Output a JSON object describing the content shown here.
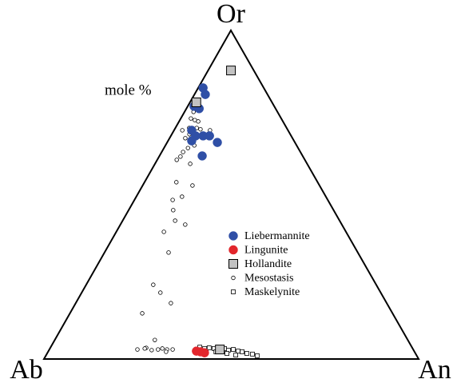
{
  "chart_data": {
    "type": "ternary",
    "vertices": {
      "top": "Or",
      "left": "Ab",
      "right": "An"
    },
    "annotation": "mole %",
    "series": [
      {
        "name": "Liebermannite",
        "color": "#2f4fa6",
        "edgecolor": "#2f4fa6",
        "marker": "dot",
        "or": [
          82.5,
          80.5,
          76.9,
          76.2,
          69.6,
          67.9,
          66.4,
          67.9,
          67.9,
          65.9,
          61.8
        ],
        "an": [
          1.3,
          2.9,
          1.7,
          3.4,
          4.7,
          6.6,
          6.3,
          8.6,
          10.3,
          13.4,
          11.4
        ]
      },
      {
        "name": "Lingunite",
        "color": "#e2262c",
        "edgecolor": "#e2262c",
        "marker": "dot",
        "or": [
          2.4,
          2.2,
          1.9
        ],
        "an": [
          39.5,
          40.7,
          41.9
        ]
      },
      {
        "name": "Hollandite",
        "color": "#c2c2c2",
        "edgecolor": "#000000",
        "marker": "square",
        "or": [
          87.8,
          78.1,
          2.9
        ],
        "an": [
          6.1,
          1.7,
          45.5
        ]
      },
      {
        "name": "Mesostasis",
        "color": "#ffffff",
        "edgecolor": "#000000",
        "marker": "small-circle",
        "or": [
          75.2,
          70.3,
          70.3,
          69.6,
          73.2,
          72.7,
          72.3,
          69.9,
          69.6,
          68.4,
          67.2,
          65.9,
          65.0,
          63.0,
          64.2,
          61.6,
          60.6,
          59.4,
          53.8,
          52.8,
          49.4,
          48.4,
          45.3,
          42.1,
          40.9,
          38.7,
          32.4,
          22.6,
          20.2,
          17.0,
          13.9,
          5.8,
          2.9,
          3.4,
          2.7,
          2.9,
          3.2,
          2.9,
          2.9,
          2.2,
          3.2
        ],
        "an": [
          2.4,
          3.7,
          5.7,
          2.2,
          2.7,
          4.0,
          5.1,
          6.9,
          9.6,
          4.7,
          4.2,
          7.0,
          7.7,
          5.7,
          6.4,
          5.7,
          5.2,
          9.4,
          8.5,
          13.3,
          12.2,
          10.2,
          11.9,
          14.0,
          17.3,
          12.7,
          17.1,
          17.9,
          21.0,
          25.4,
          19.3,
          26.7,
          23.5,
          25.6,
          27.4,
          29.0,
          30.0,
          31.4,
          32.9,
          31.5,
          25.3
        ]
      },
      {
        "name": "Maskelynite",
        "color": "#ffffff",
        "edgecolor": "#000000",
        "marker": "small-square",
        "or": [
          3.6,
          3.2,
          3.4,
          3.2,
          3.2,
          2.7,
          2.9,
          2.4,
          2.2,
          1.7,
          1.5,
          1.0,
          2.2,
          2.2,
          1.7,
          1.2
        ],
        "an": [
          39.8,
          41.3,
          42.4,
          43.8,
          46.6,
          47.9,
          49.1,
          50.6,
          51.8,
          53.3,
          54.9,
          56.4,
          42.2,
          44.8,
          48.0,
          50.6
        ]
      }
    ]
  }
}
